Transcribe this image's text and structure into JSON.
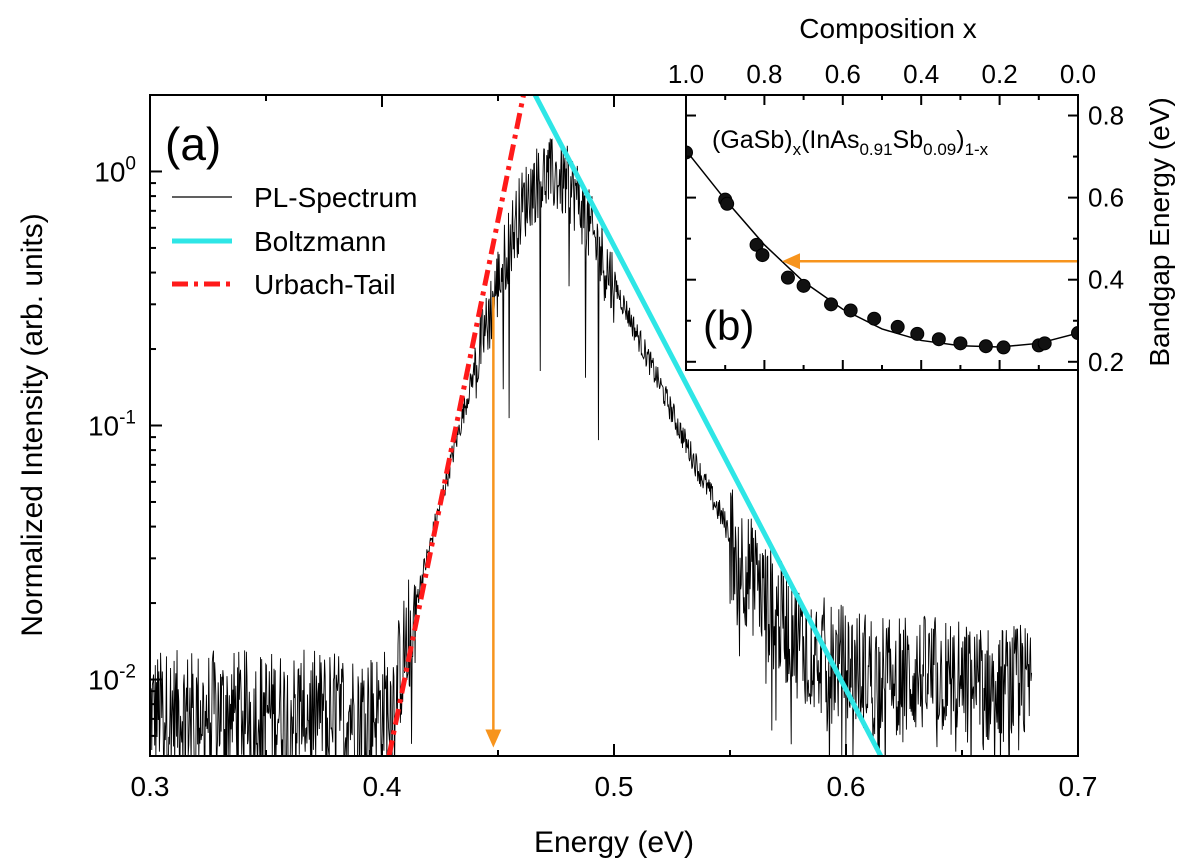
{
  "chart_data": [
    {
      "type": "line",
      "panel_label": "(a)",
      "xlabel": "Energy (eV)",
      "ylabel": "Normalized Intensity (arb. units)",
      "xlim": [
        0.3,
        0.7
      ],
      "ylim": [
        0.005,
        2.0
      ],
      "y_scale": "log",
      "x_ticks": [
        "0.3",
        "0.4",
        "0.5",
        "0.6",
        "0.7"
      ],
      "y_ticks": [
        {
          "base": "10",
          "exp": "-2",
          "value": 0.01
        },
        {
          "base": "10",
          "exp": "-1",
          "value": 0.1
        },
        {
          "base": "10",
          "exp": "0",
          "value": 1
        }
      ],
      "legend_position": "top-left",
      "series": [
        {
          "name": "PL-Spectrum",
          "color": "#000000",
          "style": "noisy line",
          "envelope_x": [
            0.3,
            0.35,
            0.4,
            0.405,
            0.41,
            0.42,
            0.43,
            0.44,
            0.45,
            0.455,
            0.46,
            0.465,
            0.47,
            0.475,
            0.48,
            0.485,
            0.49,
            0.5,
            0.51,
            0.52,
            0.53,
            0.54,
            0.55,
            0.56,
            0.57,
            0.58,
            0.59,
            0.6,
            0.62,
            0.64,
            0.66,
            0.68
          ],
          "envelope_y": [
            0.008,
            0.008,
            0.008,
            0.009,
            0.014,
            0.032,
            0.075,
            0.17,
            0.38,
            0.55,
            0.74,
            0.9,
            1.0,
            0.99,
            0.92,
            0.8,
            0.6,
            0.37,
            0.23,
            0.145,
            0.09,
            0.058,
            0.038,
            0.026,
            0.019,
            0.015,
            0.013,
            0.012,
            0.011,
            0.011,
            0.01,
            0.01
          ]
        },
        {
          "name": "Boltzmann",
          "color": "#2ee6e6",
          "style": "solid",
          "x": [
            0.466,
            0.615
          ],
          "y": [
            2.0,
            0.005
          ]
        },
        {
          "name": "Urbach-Tail",
          "color": "#ff1a1a",
          "style": "dash-dot",
          "x": [
            0.403,
            0.461
          ],
          "y": [
            0.005,
            2.0
          ]
        }
      ],
      "annotations": [
        {
          "type": "arrow",
          "color": "#f7941d",
          "x": 0.448,
          "y_from": 0.32,
          "y_to": 0.0055
        }
      ]
    },
    {
      "type": "scatter",
      "panel_label": "(b)",
      "inset": true,
      "title_parts": {
        "base1": "(GaSb)",
        "sub1": "x",
        "base2": "(InAs",
        "sub2": "0.91",
        "base3": "Sb",
        "sub3": "0.09",
        "base4": ")",
        "sub4": "1-x"
      },
      "xlabel": "Composition x",
      "ylabel": "Bandgap Energy (eV)",
      "xlim": [
        1.0,
        0.0
      ],
      "ylim": [
        0.18,
        0.85
      ],
      "x_ticks": [
        "1.0",
        "0.8",
        "0.6",
        "0.4",
        "0.2",
        "0.0"
      ],
      "y_ticks": [
        "0.2",
        "0.4",
        "0.6",
        "0.8"
      ],
      "series": [
        {
          "name": "",
          "color": "#111111",
          "x": [
            1.0,
            0.9,
            0.895,
            0.82,
            0.805,
            0.74,
            0.7,
            0.63,
            0.58,
            0.52,
            0.46,
            0.41,
            0.355,
            0.3,
            0.235,
            0.19,
            0.1,
            0.085,
            0.0
          ],
          "y": [
            0.71,
            0.595,
            0.585,
            0.485,
            0.46,
            0.405,
            0.385,
            0.34,
            0.325,
            0.305,
            0.285,
            0.268,
            0.255,
            0.245,
            0.238,
            0.235,
            0.24,
            0.245,
            0.27
          ]
        },
        {
          "name": "",
          "type": "line",
          "color": "#000000",
          "x": [
            1.0,
            0.9,
            0.8,
            0.7,
            0.6,
            0.5,
            0.4,
            0.3,
            0.2,
            0.1,
            0.0
          ],
          "y": [
            0.715,
            0.595,
            0.485,
            0.395,
            0.328,
            0.28,
            0.252,
            0.239,
            0.236,
            0.245,
            0.27
          ]
        }
      ],
      "annotations": [
        {
          "type": "arrow",
          "color": "#f7941d",
          "x_from": 0.0,
          "x_to": 0.75,
          "y": 0.445
        }
      ]
    }
  ]
}
